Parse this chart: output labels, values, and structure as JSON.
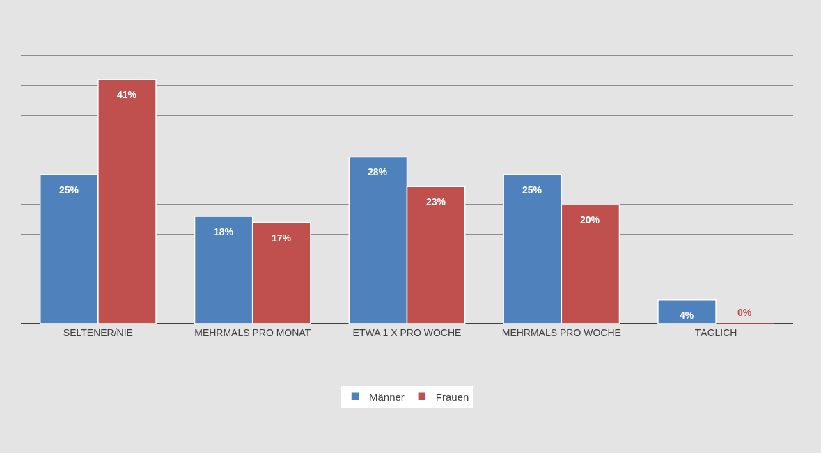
{
  "chart_data": {
    "type": "bar",
    "categories": [
      "SELTENER/NIE",
      "MEHRMALS PRO MONAT",
      "ETWA 1 X PRO WOCHE",
      "MEHRMALS PRO WOCHE",
      "TÄGLICH"
    ],
    "series": [
      {
        "name": "Männer",
        "color": "#4f81bd",
        "values": [
          25,
          18,
          28,
          25,
          4
        ],
        "value_labels": [
          "25%",
          "18%",
          "28%",
          "25%",
          "4%"
        ]
      },
      {
        "name": "Frauen",
        "color": "#c0504d",
        "values": [
          41,
          17,
          23,
          20,
          0
        ],
        "value_labels": [
          "41%",
          "17%",
          "23%",
          "20%",
          "0%"
        ]
      }
    ],
    "ylim": [
      0,
      45
    ],
    "yticks": [
      {
        "value": 0,
        "label": null
      },
      {
        "value": 5,
        "label": null
      },
      {
        "value": 10,
        "label": null
      },
      {
        "value": 15,
        "label": null
      },
      {
        "value": 20,
        "label": null
      },
      {
        "value": 25,
        "label": null
      },
      {
        "value": 30,
        "label": null
      },
      {
        "value": 35,
        "label": null
      },
      {
        "value": 40,
        "label": null
      },
      {
        "value": 45,
        "label": null
      }
    ],
    "grid": "y",
    "tick_labels": "x",
    "legend": "bottom"
  }
}
